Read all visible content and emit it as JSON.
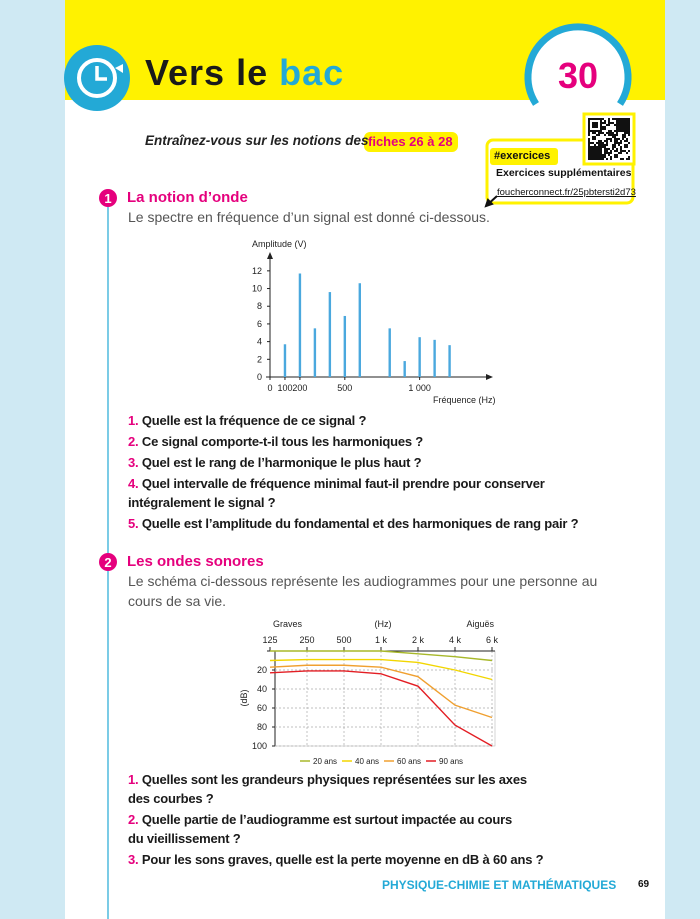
{
  "header": {
    "title_prefix": "Vers le",
    "title_highlight": "bac",
    "number": "30"
  },
  "intro": {
    "text": "Entraînez-vous sur les notions des",
    "highlight": "fiches 26 à 28"
  },
  "resources": {
    "tag": "#exercices",
    "label": "Exercices supplémentaires",
    "link": "foucherconnect.fr/25pbtersti2d73"
  },
  "sections": [
    {
      "number": "1",
      "title": "La notion d’onde",
      "lines": [
        "Le spectre en fréquence d’un signal est donné ci-dessous."
      ],
      "questions": [
        {
          "number": "1.",
          "lines": [
            "Quelle est la fréquence de ce signal ?"
          ]
        },
        {
          "number": "2.",
          "lines": [
            "Ce signal comporte-t-il tous les harmoniques ?"
          ]
        },
        {
          "number": "3.",
          "lines": [
            "Quel est le rang de l’harmonique le plus haut ?"
          ]
        },
        {
          "number": "4.",
          "lines": [
            "Quel intervalle de fréquence minimal faut-il prendre pour conserver",
            "intégralement le signal ?"
          ]
        },
        {
          "number": "5.",
          "lines": [
            "Quelle est l’amplitude du fondamental et des harmoniques de rang pair ?"
          ]
        }
      ]
    },
    {
      "number": "2",
      "title": "Les ondes sonores",
      "lines": [
        "Le schéma ci-dessous représente les audiogrammes pour une personne au",
        "cours de sa vie."
      ],
      "questions": [
        {
          "number": "1.",
          "lines": [
            "Quelles sont les grandeurs physiques représentées sur les axes",
            "des courbes ?"
          ]
        },
        {
          "number": "2.",
          "lines": [
            "Quelle partie de l’audiogramme est surtout impactée au cours",
            "du vieillissement ?"
          ]
        },
        {
          "number": "3.",
          "lines": [
            "Pour les sons graves, quelle est la perte moyenne en dB à 60 ans ?"
          ]
        }
      ]
    }
  ],
  "chart_data": [
    {
      "type": "bar",
      "y_label": "Amplitude (V)",
      "x_label": "Fréquence (Hz)",
      "x": [
        100,
        200,
        300,
        400,
        500,
        600,
        800,
        900,
        1000,
        1100,
        1200
      ],
      "values": [
        3.7,
        11.7,
        5.5,
        9.6,
        6.9,
        10.6,
        5.5,
        1.8,
        4.5,
        4.2,
        3.6
      ],
      "color": "#4aa8de",
      "xlim": [
        0,
        1450
      ],
      "ylim": [
        0,
        13
      ],
      "xticks": [
        0,
        100,
        200,
        500,
        {
          "value": 1000,
          "label": "1 000"
        }
      ],
      "yticks": [
        0,
        2,
        4,
        6,
        8,
        10,
        12
      ]
    },
    {
      "type": "line",
      "x_title_left": "Graves",
      "x_title_center": "(Hz)",
      "x_title_right": "Aiguës",
      "y_label": "(dB)",
      "categories": [
        "125",
        "250",
        "500",
        "1 k",
        "2 k",
        "4 k",
        "6 k"
      ],
      "series": [
        {
          "name": "20 ans",
          "color": "#a8b82a",
          "values": [
            0,
            0,
            0,
            0,
            3,
            6,
            10
          ]
        },
        {
          "name": "40 ans",
          "color": "#f2d600",
          "values": [
            10,
            9,
            9,
            9,
            12,
            20,
            30
          ]
        },
        {
          "name": "60 ans",
          "color": "#f0a030",
          "values": [
            17,
            15,
            15,
            17,
            27,
            57,
            70
          ]
        },
        {
          "name": "90 ans",
          "color": "#e31e24",
          "values": [
            23,
            21,
            21,
            24,
            37,
            78,
            100
          ]
        }
      ],
      "ylim": [
        0,
        100
      ],
      "y_inverted": true,
      "yticks": [
        20,
        40,
        60,
        80,
        100
      ],
      "grid": true,
      "legend": "bottom"
    }
  ],
  "footer": {
    "subject": "PHYSIQUE-CHIMIE ET MATHÉMATIQUES",
    "page": "69"
  }
}
